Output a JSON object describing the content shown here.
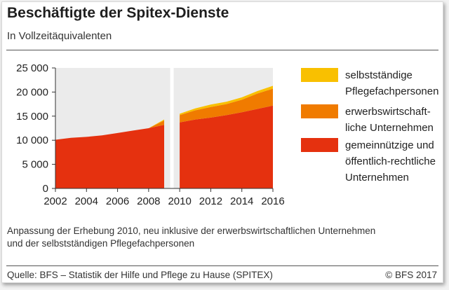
{
  "title": "Beschäftigte der Spitex-Dienste",
  "subtitle": "In Vollzeitäquivalenten",
  "note_lines": [
    "Anpassung der Erhebung 2010, neu inklusive der erwerbswirtschaftlichen Unternehmen",
    "und der selbstständigen Pflegefachpersonen"
  ],
  "source": "Quelle: BFS – Statistik der Hilfe und Pflege zu Hause (SPITEX)",
  "copyright": "© BFS 2017",
  "colors": {
    "gemeinnuetzig": "#e5310f",
    "erwerbswirtschaftlich": "#f07b00",
    "selbststaendig": "#f9c000",
    "plot_background": "#ebebeb"
  },
  "chart_data": {
    "type": "area",
    "stacked": true,
    "title": "Beschäftigte der Spitex-Dienste",
    "subtitle": "In Vollzeitäquivalenten",
    "ylim": [
      0,
      25000
    ],
    "xlim": [
      2002,
      2016
    ],
    "y_ticks": [
      "0",
      "5 000",
      "10 000",
      "15 000",
      "20 000",
      "25 000"
    ],
    "x_ticks": [
      "2002",
      "2004",
      "2006",
      "2008",
      "2010",
      "2012",
      "2014",
      "2016"
    ],
    "grid": false,
    "legend_position": "right",
    "break_between": [
      2009,
      2010
    ],
    "series": [
      {
        "name": "gemeinnützige und öffentlich-rechtliche Unternehmen",
        "legend_lines": [
          "gemeinnützige und",
          "öffentlich-rechtliche",
          "Unternehmen"
        ],
        "color": "#e5310f",
        "points": [
          [
            2002,
            10100
          ],
          [
            2003,
            10500
          ],
          [
            2004,
            10700
          ],
          [
            2005,
            11000
          ],
          [
            2006,
            11500
          ],
          [
            2007,
            12000
          ],
          [
            2008,
            12500
          ],
          [
            2009,
            13200
          ],
          [
            2010,
            13700
          ],
          [
            2011,
            14300
          ],
          [
            2012,
            14700
          ],
          [
            2013,
            15200
          ],
          [
            2014,
            15800
          ],
          [
            2015,
            16500
          ],
          [
            2016,
            17200
          ]
        ]
      },
      {
        "name": "erwerbswirtschaftliche Unternehmen",
        "legend_lines": [
          "erwerbswirtschaft-",
          "liche Unternehmen"
        ],
        "color": "#f07b00",
        "points": [
          [
            2009,
            900
          ],
          [
            2010,
            1500
          ],
          [
            2011,
            1900
          ],
          [
            2012,
            2200
          ],
          [
            2013,
            2300
          ],
          [
            2014,
            2600
          ],
          [
            2015,
            3200
          ],
          [
            2016,
            3500
          ]
        ]
      },
      {
        "name": "selbstständige Pflegefachpersonen",
        "legend_lines": [
          "selbstständige",
          "Pflegefachpersonen"
        ],
        "color": "#f9c000",
        "points": [
          [
            2009,
            200
          ],
          [
            2010,
            300
          ],
          [
            2011,
            400
          ],
          [
            2012,
            500
          ],
          [
            2013,
            500
          ],
          [
            2014,
            500
          ],
          [
            2015,
            500
          ],
          [
            2016,
            600
          ]
        ]
      }
    ]
  }
}
